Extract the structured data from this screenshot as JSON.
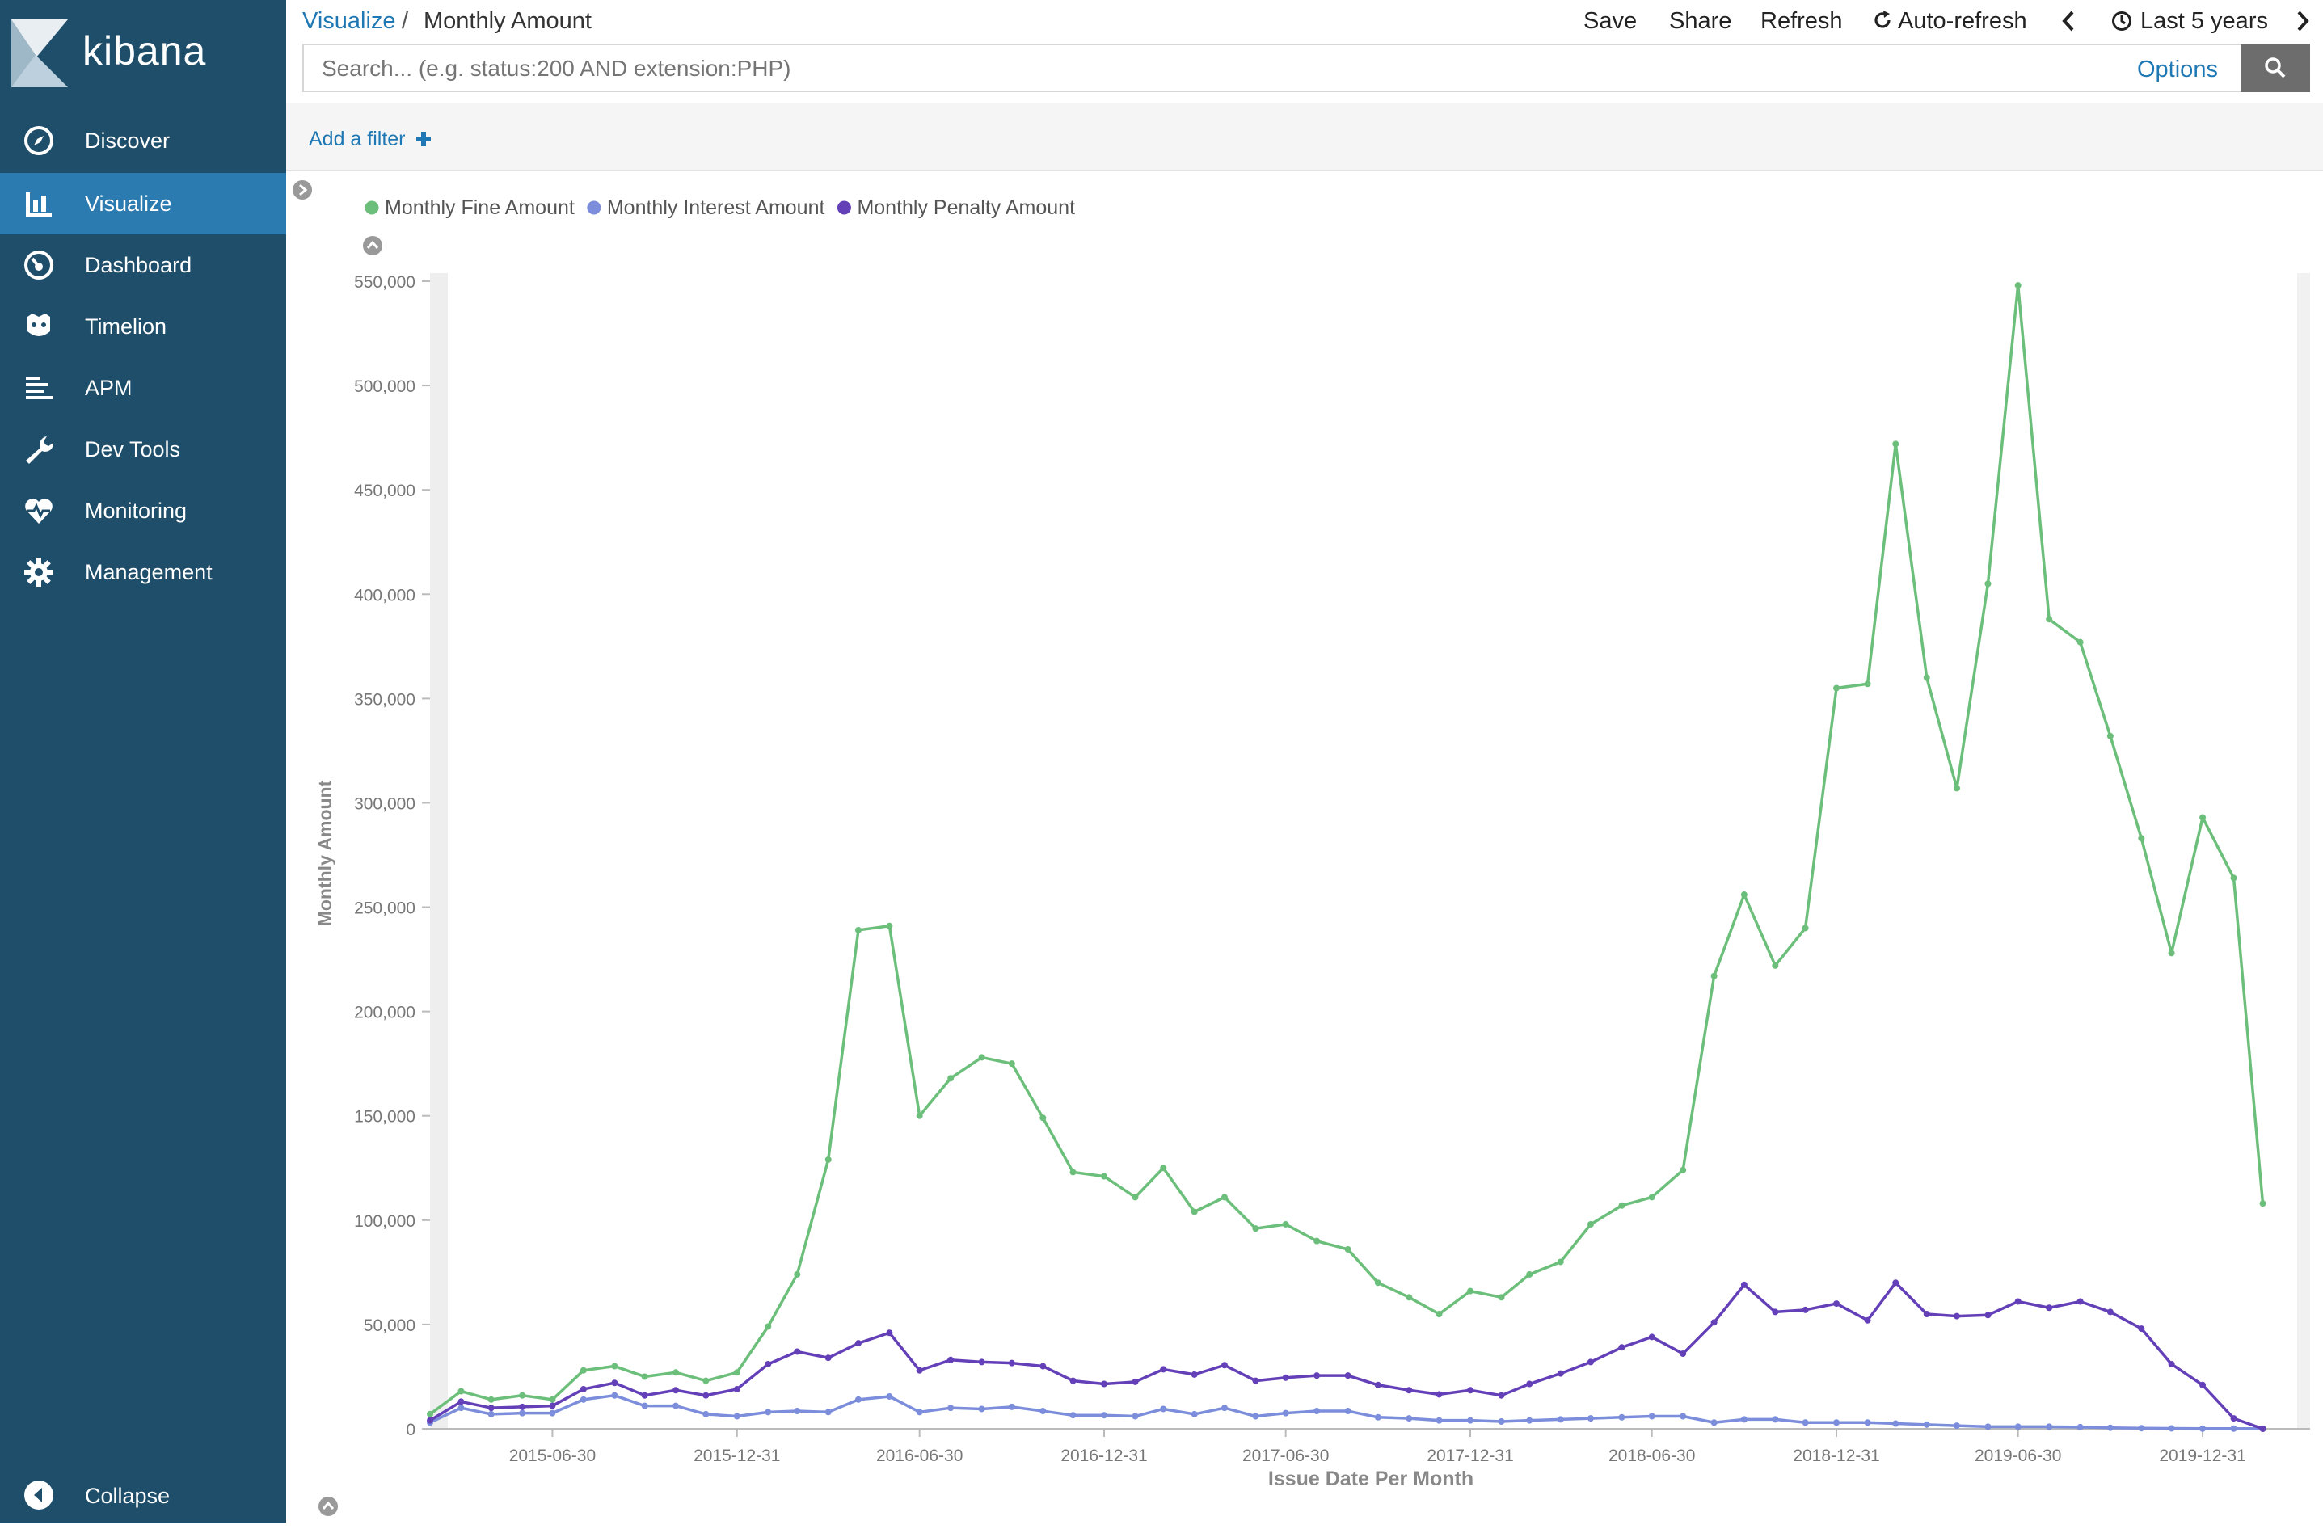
{
  "app": {
    "brand": "kibana"
  },
  "sidebar": {
    "items": [
      {
        "label": "Discover",
        "icon": "compass-icon",
        "active": false
      },
      {
        "label": "Visualize",
        "icon": "bar-chart-icon",
        "active": true
      },
      {
        "label": "Dashboard",
        "icon": "dashboard-icon",
        "active": false
      },
      {
        "label": "Timelion",
        "icon": "timelion-icon",
        "active": false
      },
      {
        "label": "APM",
        "icon": "apm-icon",
        "active": false
      },
      {
        "label": "Dev Tools",
        "icon": "wrench-icon",
        "active": false
      },
      {
        "label": "Monitoring",
        "icon": "heartbeat-icon",
        "active": false
      },
      {
        "label": "Management",
        "icon": "gear-icon",
        "active": false
      }
    ],
    "collapse_label": "Collapse"
  },
  "breadcrumb": {
    "parent": "Visualize",
    "separator": "/",
    "current": "Monthly Amount"
  },
  "toolbar": {
    "save": "Save",
    "share": "Share",
    "refresh": "Refresh",
    "auto_refresh": "Auto-refresh",
    "time_range": "Last 5 years"
  },
  "search": {
    "placeholder": "Search... (e.g. status:200 AND extension:PHP)",
    "options": "Options"
  },
  "filters": {
    "add_label": "Add a filter"
  },
  "colors": {
    "sidebar": "#1f4e6b",
    "active": "#2c7bb0",
    "link": "#1f78b4",
    "fine": "#6cbf7a",
    "interest": "#7b8ddb",
    "penalty": "#6440b8"
  },
  "chart_data": {
    "type": "line",
    "xlabel": "Issue Date Per Month",
    "ylabel": "Monthly Amount",
    "ylim": [
      0,
      550000
    ],
    "yticks": [
      "0",
      "50,000",
      "100,000",
      "150,000",
      "200,000",
      "250,000",
      "300,000",
      "350,000",
      "400,000",
      "450,000",
      "500,000",
      "550,000"
    ],
    "xticks": [
      "2015-06-30",
      "2015-12-31",
      "2016-06-30",
      "2016-12-31",
      "2017-06-30",
      "2017-12-31",
      "2018-06-30",
      "2018-12-31",
      "2019-06-30",
      "2019-12-31"
    ],
    "x_start": "2015-02-28",
    "x_end": "2020-03-31",
    "legend_position": "top-left",
    "series": [
      {
        "name": "Monthly Fine Amount",
        "color": "#6cbf7a",
        "values": [
          7000,
          18000,
          14000,
          16000,
          14000,
          28000,
          30000,
          25000,
          27000,
          23000,
          27000,
          49000,
          74000,
          129000,
          239000,
          241000,
          150000,
          168000,
          178000,
          175000,
          149000,
          123000,
          121000,
          111000,
          125000,
          104000,
          111000,
          96000,
          98000,
          90000,
          86000,
          70000,
          63000,
          55000,
          66000,
          63000,
          74000,
          80000,
          98000,
          107000,
          111000,
          124000,
          217000,
          256000,
          222000,
          240000,
          355000,
          357000,
          472000,
          360000,
          307000,
          405000,
          548000,
          388000,
          377000,
          332000,
          283000,
          228000,
          293000,
          264000,
          108000
        ]
      },
      {
        "name": "Monthly Interest Amount",
        "color": "#7b8ddb",
        "values": [
          3000,
          10000,
          7000,
          7500,
          7500,
          14000,
          16000,
          11000,
          11000,
          7000,
          6000,
          8000,
          8500,
          8000,
          14000,
          15500,
          8000,
          10000,
          9500,
          10500,
          8500,
          6500,
          6500,
          6000,
          9500,
          7000,
          10000,
          6000,
          7500,
          8500,
          8500,
          5500,
          5000,
          4000,
          4000,
          3500,
          4000,
          4500,
          5000,
          5500,
          6000,
          6000,
          3000,
          4500,
          4500,
          3000,
          3000,
          3000,
          2500,
          2000,
          1500,
          1000,
          1000,
          1000,
          800,
          500,
          300,
          200,
          100,
          100,
          100
        ]
      },
      {
        "name": "Monthly Penalty Amount",
        "color": "#6440b8",
        "values": [
          4000,
          13000,
          10000,
          10500,
          11000,
          19000,
          22000,
          16000,
          18500,
          16000,
          19000,
          31000,
          37000,
          34000,
          41000,
          46000,
          28000,
          33000,
          32000,
          31500,
          30000,
          23000,
          21500,
          22500,
          28500,
          26000,
          30500,
          23000,
          24500,
          25500,
          25500,
          21000,
          18500,
          16500,
          18500,
          16000,
          21500,
          26500,
          32000,
          39000,
          44000,
          36000,
          51000,
          69000,
          56000,
          57000,
          60000,
          52000,
          70000,
          55000,
          54000,
          54500,
          61000,
          58000,
          61000,
          56000,
          48000,
          31000,
          21000,
          5000,
          0
        ]
      }
    ]
  }
}
